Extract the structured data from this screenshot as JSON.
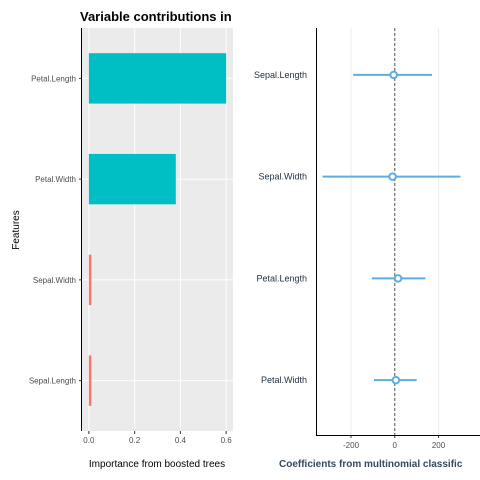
{
  "title": "Variable contributions in",
  "chart_data": [
    {
      "type": "bar",
      "orientation": "horizontal",
      "categories": [
        "Petal.Length",
        "Petal.Width",
        "Sepal.Width",
        "Sepal.Length"
      ],
      "values": [
        0.6,
        0.38,
        0.01,
        0.005
      ],
      "xlabel": "Importance from boosted trees",
      "ylabel": "Features",
      "xlim": [
        -0.03,
        0.63
      ],
      "x_ticks": [
        "0.0",
        "0.2",
        "0.4",
        "0.6"
      ],
      "panel_background": "#ebebeb",
      "colors": [
        "#00bfc4",
        "#00bfc4",
        "#f8766d",
        "#f8766d"
      ]
    },
    {
      "type": "scatter",
      "subtype": "point-range",
      "categories": [
        "Sepal.Length",
        "Sepal.Width",
        "Petal.Length",
        "Petal.Width"
      ],
      "estimates": [
        -5,
        -10,
        15,
        5
      ],
      "lower": [
        -190,
        -330,
        -105,
        -95
      ],
      "upper": [
        170,
        300,
        140,
        100
      ],
      "xlabel": "Coefficients from multinomial classific",
      "xlim": [
        -360,
        330
      ],
      "x_ticks": [
        "-200",
        "0",
        "200"
      ],
      "reference_line": 0,
      "color": "#5dade2"
    }
  ]
}
